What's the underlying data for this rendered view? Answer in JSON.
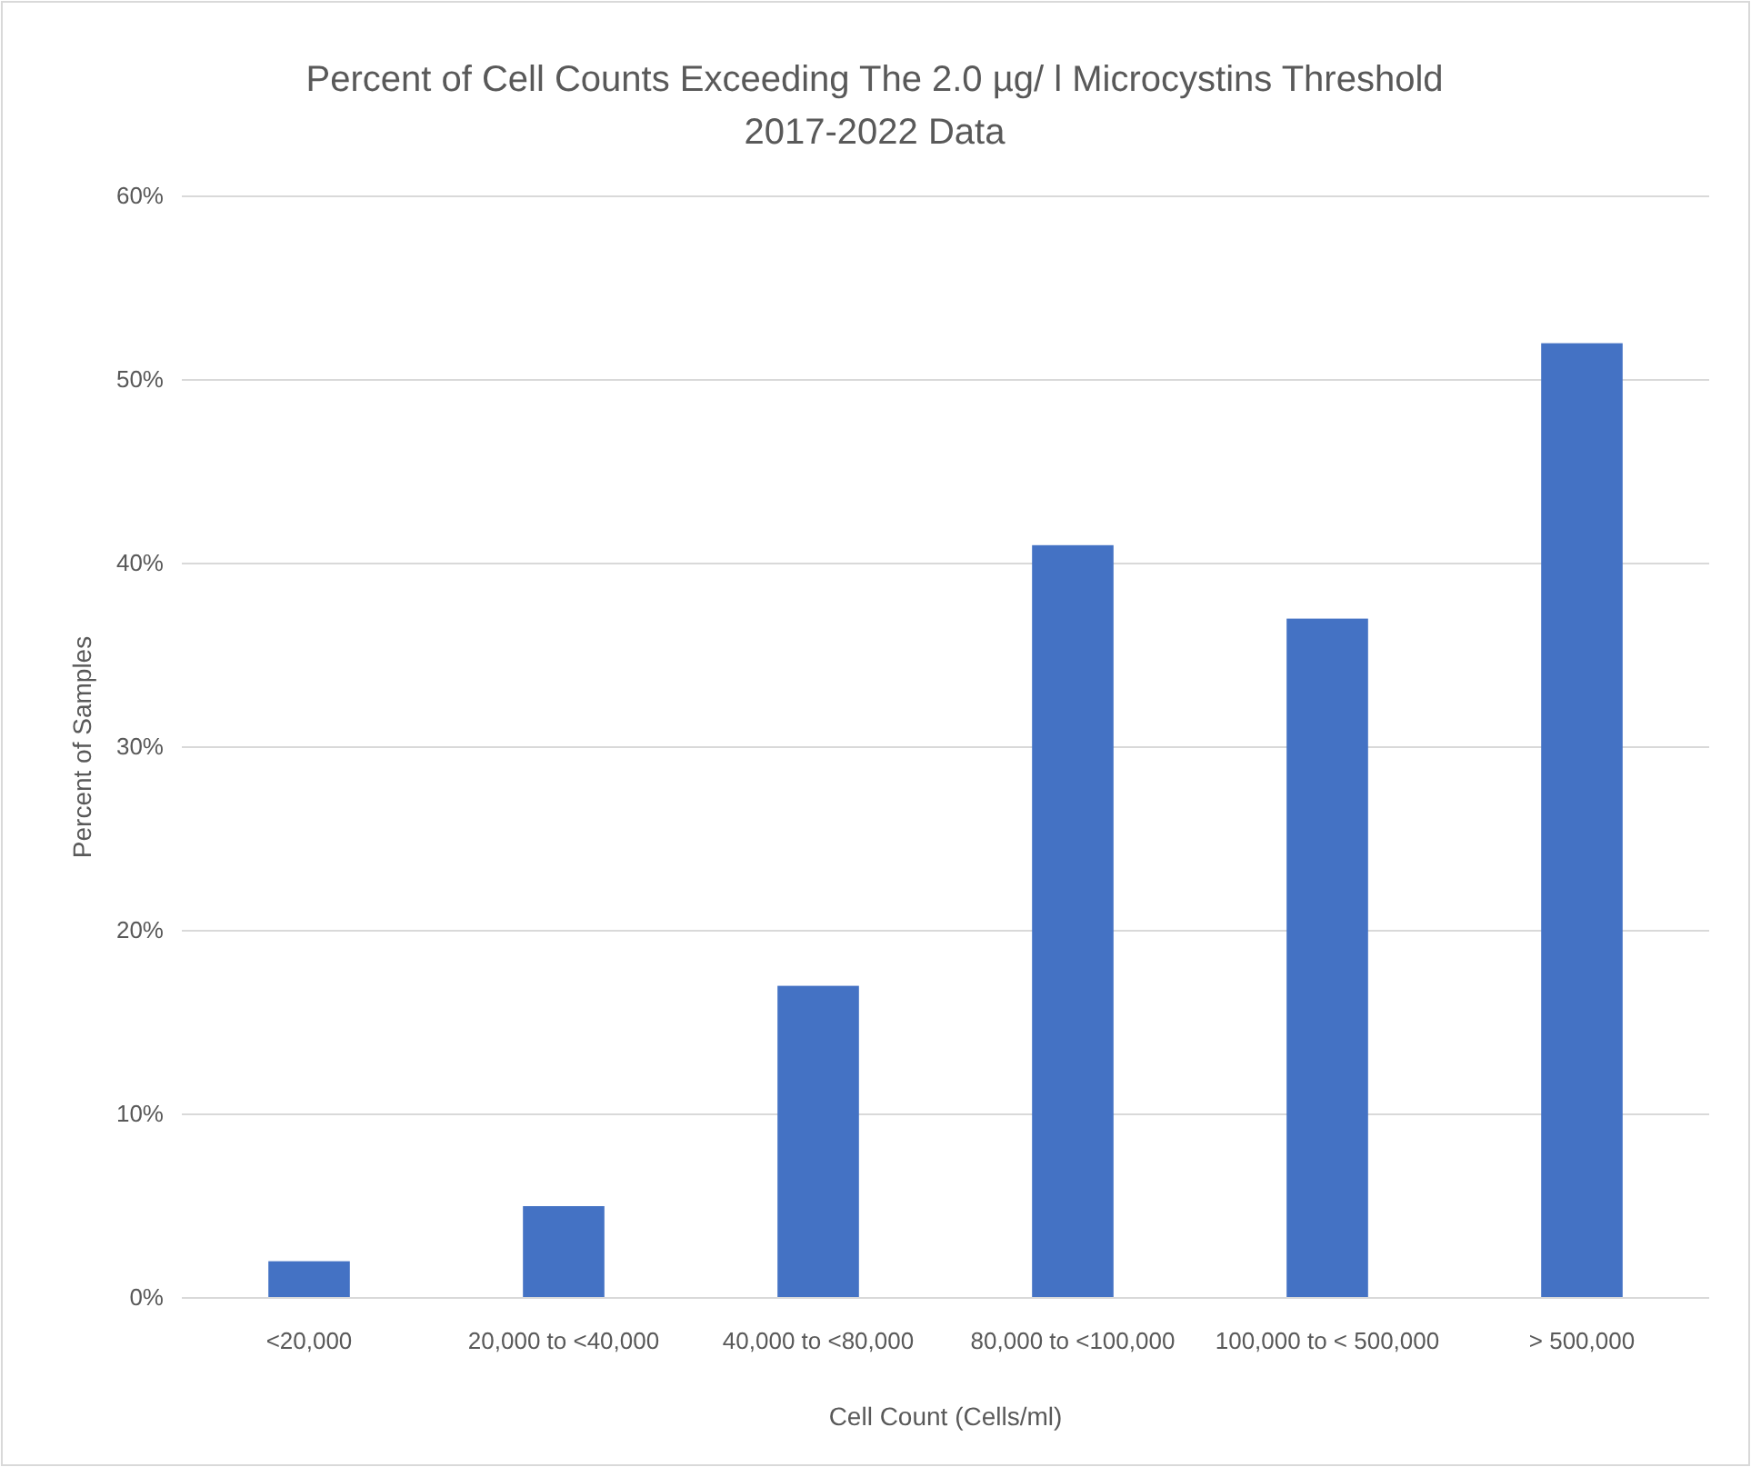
{
  "chart_data": {
    "type": "bar",
    "title": "Percent of Cell Counts Exceeding The 2.0 µg/ l Microcystins Threshold",
    "subtitle": "2017-2022 Data",
    "xlabel": "Cell Count (Cells/ml)",
    "ylabel": "Percent of Samples",
    "categories": [
      "<20,000",
      "20,000 to <40,000",
      "40,000 to <80,000",
      "80,000 to <100,000",
      "100,000 to < 500,000",
      "> 500,000"
    ],
    "values": [
      2,
      5,
      17,
      41,
      37,
      52
    ],
    "color": "#4472c4",
    "ylim": [
      0,
      60
    ],
    "yticks": [
      {
        "value": 0,
        "label": "0%"
      },
      {
        "value": 10,
        "label": "10%"
      },
      {
        "value": 20,
        "label": "20%"
      },
      {
        "value": 30,
        "label": "30%"
      },
      {
        "value": 40,
        "label": "40%"
      },
      {
        "value": 50,
        "label": "50%"
      },
      {
        "value": 60,
        "label": "60%"
      }
    ],
    "grid": "y"
  }
}
